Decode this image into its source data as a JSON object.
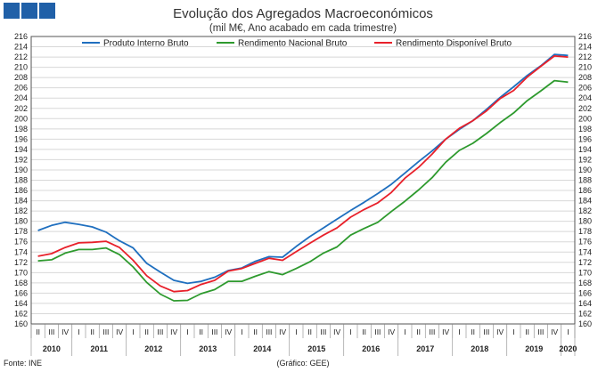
{
  "title": "Evolução dos Agregados Macroeconómicos",
  "subtitle": "(mil M€, Ano acabado em cada trimestre)",
  "source": "Fonte: INE",
  "credit": "(Gráfico: GEE)",
  "colors": {
    "logo": "#2060a8"
  },
  "chart_data": {
    "type": "line",
    "ylim": [
      160,
      216
    ],
    "ytick_step": 2,
    "grid": true,
    "legend_position": "top",
    "quarter_labels": [
      "II",
      "III",
      "IV",
      "I",
      "II",
      "III",
      "IV",
      "I",
      "II",
      "III",
      "IV",
      "I",
      "II",
      "III",
      "IV",
      "I",
      "II",
      "III",
      "IV",
      "I",
      "II",
      "III",
      "IV",
      "I",
      "II",
      "III",
      "IV",
      "I",
      "II",
      "III",
      "IV",
      "I",
      "II",
      "III",
      "IV",
      "I",
      "II",
      "III",
      "IV",
      "I"
    ],
    "year_labels": [
      {
        "label": "2010",
        "start": 0,
        "end": 2
      },
      {
        "label": "2011",
        "start": 3,
        "end": 6
      },
      {
        "label": "2012",
        "start": 7,
        "end": 10
      },
      {
        "label": "2013",
        "start": 11,
        "end": 14
      },
      {
        "label": "2014",
        "start": 15,
        "end": 18
      },
      {
        "label": "2015",
        "start": 19,
        "end": 22
      },
      {
        "label": "2016",
        "start": 23,
        "end": 26
      },
      {
        "label": "2017",
        "start": 27,
        "end": 30
      },
      {
        "label": "2018",
        "start": 31,
        "end": 34
      },
      {
        "label": "2019",
        "start": 35,
        "end": 38
      },
      {
        "label": "2020",
        "start": 39,
        "end": 39
      }
    ],
    "series": [
      {
        "name": "Produto Interno Bruto",
        "color": "#1f6fbf",
        "values": [
          178.2,
          179.2,
          179.8,
          179.4,
          178.9,
          177.9,
          176.2,
          174.8,
          171.8,
          170.1,
          168.5,
          167.9,
          168.3,
          169.1,
          170.4,
          170.9,
          172.2,
          173.1,
          173.0,
          175.1,
          177.0,
          178.7,
          180.4,
          182.1,
          183.7,
          185.4,
          187.2,
          189.4,
          191.6,
          193.7,
          196.0,
          197.9,
          199.6,
          201.8,
          204.1,
          206.2,
          208.4,
          210.3,
          212.5,
          212.3
        ]
      },
      {
        "name": "Rendimento Nacional Bruto",
        "color": "#2e9a2e",
        "values": [
          172.3,
          172.5,
          173.8,
          174.5,
          174.5,
          174.8,
          173.5,
          171.1,
          168.1,
          165.8,
          164.5,
          164.6,
          165.9,
          166.7,
          168.3,
          168.3,
          169.3,
          170.2,
          169.6,
          170.8,
          172.1,
          173.8,
          175.0,
          177.3,
          178.6,
          179.8,
          181.9,
          183.9,
          186.1,
          188.5,
          191.5,
          193.8,
          195.2,
          197.1,
          199.2,
          201.1,
          203.5,
          205.4,
          207.4,
          207.1
        ]
      },
      {
        "name": "Rendimento Disponível Bruto",
        "color": "#e8202a",
        "values": [
          173.2,
          173.7,
          174.9,
          175.8,
          175.9,
          176.1,
          174.9,
          172.4,
          169.4,
          167.4,
          166.3,
          166.5,
          167.7,
          168.5,
          170.3,
          170.8,
          171.8,
          172.8,
          172.4,
          174.1,
          175.7,
          177.3,
          178.7,
          180.8,
          182.3,
          183.6,
          185.6,
          188.4,
          190.5,
          193.1,
          196.0,
          198.1,
          199.6,
          201.5,
          203.9,
          205.5,
          208.1,
          210.2,
          212.2,
          212.0
        ]
      }
    ]
  }
}
